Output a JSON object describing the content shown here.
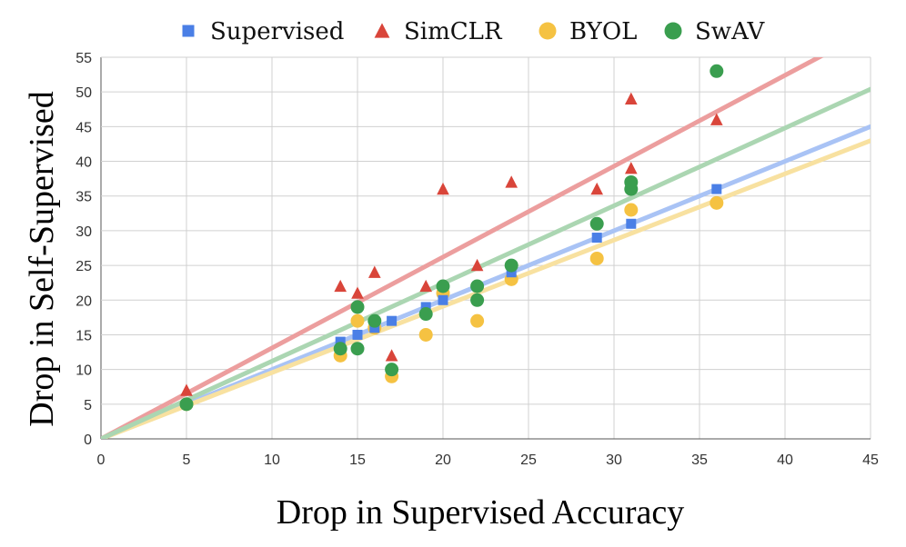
{
  "chart_data": {
    "type": "scatter",
    "title": "",
    "xlabel": "Drop in Supervised Accuracy",
    "ylabel": "Drop in Self-Supervised",
    "xlim": [
      0,
      45
    ],
    "ylim": [
      0,
      55
    ],
    "xticks": [
      0,
      5,
      10,
      15,
      20,
      25,
      30,
      35,
      40,
      45
    ],
    "yticks": [
      0,
      5,
      10,
      15,
      20,
      25,
      30,
      35,
      40,
      45,
      50,
      55
    ],
    "grid": true,
    "legend_position": "top-center",
    "series": [
      {
        "name": "Supervised",
        "marker": "square",
        "color": "#4a7fe6",
        "trend_color": "#a9c3f5",
        "trendline_slope": 1.0,
        "points": [
          [
            5,
            5
          ],
          [
            14,
            14
          ],
          [
            15,
            15
          ],
          [
            16,
            16
          ],
          [
            17,
            17
          ],
          [
            19,
            19
          ],
          [
            20,
            20
          ],
          [
            22,
            22
          ],
          [
            24,
            24
          ],
          [
            29,
            29
          ],
          [
            31,
            31
          ],
          [
            36,
            36
          ]
        ]
      },
      {
        "name": "SimCLR",
        "marker": "triangle",
        "color": "#d9453a",
        "trend_color": "#ec9e9e",
        "trendline_slope": 1.31,
        "points": [
          [
            5,
            7
          ],
          [
            14,
            22
          ],
          [
            15,
            21
          ],
          [
            16,
            24
          ],
          [
            17,
            12
          ],
          [
            19,
            22
          ],
          [
            20,
            36
          ],
          [
            22,
            25
          ],
          [
            24,
            37
          ],
          [
            29,
            36
          ],
          [
            31,
            39
          ],
          [
            31,
            49
          ],
          [
            36,
            46
          ]
        ]
      },
      {
        "name": "BYOL",
        "marker": "circle",
        "color": "#f5c242",
        "trend_color": "#f8e1a0",
        "trendline_slope": 0.955,
        "points": [
          [
            5,
            5
          ],
          [
            14,
            12
          ],
          [
            15,
            17
          ],
          [
            16,
            16
          ],
          [
            17,
            9
          ],
          [
            19,
            15
          ],
          [
            20,
            21
          ],
          [
            22,
            17
          ],
          [
            24,
            23
          ],
          [
            29,
            26
          ],
          [
            31,
            33
          ],
          [
            36,
            34
          ]
        ]
      },
      {
        "name": "SwAV",
        "marker": "circle",
        "color": "#3a9e4f",
        "trend_color": "#abd6b2",
        "trendline_slope": 1.12,
        "points": [
          [
            5,
            5
          ],
          [
            14,
            13
          ],
          [
            15,
            13
          ],
          [
            15,
            19
          ],
          [
            16,
            17
          ],
          [
            17,
            10
          ],
          [
            19,
            18
          ],
          [
            20,
            22
          ],
          [
            22,
            20
          ],
          [
            22,
            22
          ],
          [
            24,
            25
          ],
          [
            29,
            31
          ],
          [
            31,
            36
          ],
          [
            31,
            37
          ],
          [
            36,
            53
          ]
        ]
      }
    ]
  }
}
